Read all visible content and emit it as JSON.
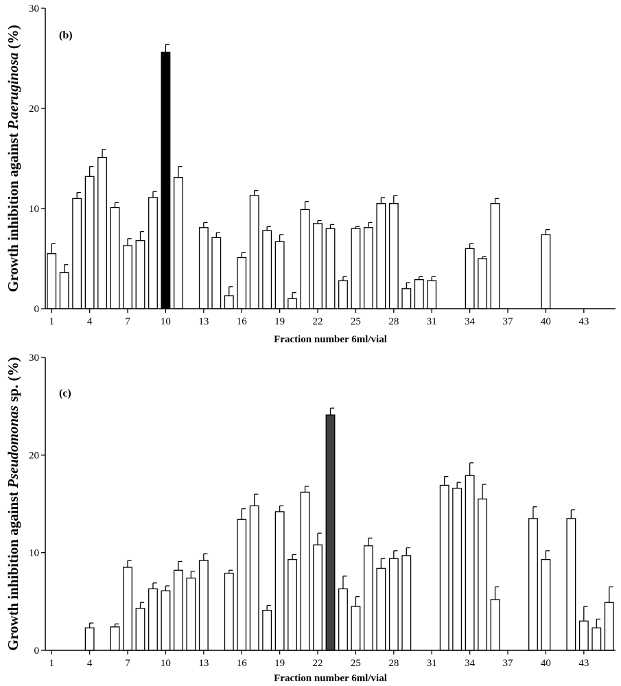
{
  "chart_data": [
    {
      "type": "bar",
      "panel_label": "(b)",
      "ylabel_prefix": "Growth inhibition against ",
      "ylabel_italic": "P.aeruginosa",
      "ylabel_suffix": " (%)",
      "xlabel": "Fraction number 6ml/vial",
      "ylim": [
        0,
        30
      ],
      "yticks": [
        0,
        10,
        20,
        30
      ],
      "xlim": [
        0.5,
        45.5
      ],
      "xticks": [
        1,
        4,
        7,
        10,
        13,
        16,
        19,
        22,
        25,
        28,
        31,
        34,
        37,
        40,
        43
      ],
      "highlight_color": "#000000",
      "bars": [
        {
          "x": 1,
          "value": 5.5,
          "error": 1.0
        },
        {
          "x": 2,
          "value": 3.6,
          "error": 0.8
        },
        {
          "x": 3,
          "value": 11.0,
          "error": 0.6
        },
        {
          "x": 4,
          "value": 13.2,
          "error": 1.0
        },
        {
          "x": 5,
          "value": 15.1,
          "error": 0.8
        },
        {
          "x": 6,
          "value": 10.1,
          "error": 0.5
        },
        {
          "x": 7,
          "value": 6.3,
          "error": 0.7
        },
        {
          "x": 8,
          "value": 6.8,
          "error": 0.9
        },
        {
          "x": 9,
          "value": 11.1,
          "error": 0.6
        },
        {
          "x": 10,
          "value": 25.6,
          "error": 0.8,
          "highlight": true
        },
        {
          "x": 11,
          "value": 13.1,
          "error": 1.1
        },
        {
          "x": 13,
          "value": 8.1,
          "error": 0.5
        },
        {
          "x": 14,
          "value": 7.1,
          "error": 0.5
        },
        {
          "x": 15,
          "value": 1.3,
          "error": 0.9
        },
        {
          "x": 16,
          "value": 5.1,
          "error": 0.5
        },
        {
          "x": 17,
          "value": 11.3,
          "error": 0.5
        },
        {
          "x": 18,
          "value": 7.8,
          "error": 0.4
        },
        {
          "x": 19,
          "value": 6.7,
          "error": 0.7
        },
        {
          "x": 20,
          "value": 1.0,
          "error": 0.6
        },
        {
          "x": 21,
          "value": 9.9,
          "error": 0.8
        },
        {
          "x": 22,
          "value": 8.5,
          "error": 0.3
        },
        {
          "x": 23,
          "value": 8.0,
          "error": 0.4
        },
        {
          "x": 24,
          "value": 2.8,
          "error": 0.4
        },
        {
          "x": 25,
          "value": 8.0,
          "error": 0.2
        },
        {
          "x": 26,
          "value": 8.1,
          "error": 0.5
        },
        {
          "x": 27,
          "value": 10.5,
          "error": 0.6
        },
        {
          "x": 28,
          "value": 10.5,
          "error": 0.8
        },
        {
          "x": 29,
          "value": 2.0,
          "error": 0.6
        },
        {
          "x": 30,
          "value": 2.9,
          "error": 0.3
        },
        {
          "x": 31,
          "value": 2.8,
          "error": 0.4
        },
        {
          "x": 34,
          "value": 6.0,
          "error": 0.5
        },
        {
          "x": 35,
          "value": 5.0,
          "error": 0.2
        },
        {
          "x": 36,
          "value": 10.5,
          "error": 0.5
        },
        {
          "x": 40,
          "value": 7.4,
          "error": 0.5
        }
      ]
    },
    {
      "type": "bar",
      "panel_label": "(c)",
      "ylabel_prefix": "Growth inhibition  against ",
      "ylabel_italic": "Pseudomonas",
      "ylabel_suffix": " sp. (%)",
      "xlabel": "Fraction number 6ml/vial",
      "ylim": [
        0,
        30
      ],
      "yticks": [
        0,
        10,
        20,
        30
      ],
      "xlim": [
        0.5,
        45.5
      ],
      "xticks": [
        1,
        4,
        7,
        10,
        13,
        16,
        19,
        22,
        25,
        28,
        31,
        34,
        37,
        40,
        43
      ],
      "highlight_color": "#404040",
      "bars": [
        {
          "x": 4,
          "value": 2.3,
          "error": 0.5
        },
        {
          "x": 6,
          "value": 2.4,
          "error": 0.3
        },
        {
          "x": 7,
          "value": 8.5,
          "error": 0.7
        },
        {
          "x": 8,
          "value": 4.3,
          "error": 0.6
        },
        {
          "x": 9,
          "value": 6.3,
          "error": 0.6
        },
        {
          "x": 10,
          "value": 6.1,
          "error": 0.5
        },
        {
          "x": 11,
          "value": 8.2,
          "error": 0.9
        },
        {
          "x": 12,
          "value": 7.4,
          "error": 0.7
        },
        {
          "x": 13,
          "value": 9.2,
          "error": 0.7
        },
        {
          "x": 15,
          "value": 7.9,
          "error": 0.3
        },
        {
          "x": 16,
          "value": 13.4,
          "error": 1.1
        },
        {
          "x": 17,
          "value": 14.8,
          "error": 1.2
        },
        {
          "x": 18,
          "value": 4.1,
          "error": 0.5
        },
        {
          "x": 19,
          "value": 14.2,
          "error": 0.6
        },
        {
          "x": 20,
          "value": 9.3,
          "error": 0.5
        },
        {
          "x": 21,
          "value": 16.2,
          "error": 0.6
        },
        {
          "x": 22,
          "value": 10.8,
          "error": 1.2
        },
        {
          "x": 23,
          "value": 24.1,
          "error": 0.7,
          "highlight": true
        },
        {
          "x": 24,
          "value": 6.3,
          "error": 1.3
        },
        {
          "x": 25,
          "value": 4.5,
          "error": 1.0
        },
        {
          "x": 26,
          "value": 10.7,
          "error": 0.8
        },
        {
          "x": 27,
          "value": 8.4,
          "error": 1.0
        },
        {
          "x": 28,
          "value": 9.4,
          "error": 0.8
        },
        {
          "x": 29,
          "value": 9.7,
          "error": 0.8
        },
        {
          "x": 32,
          "value": 16.9,
          "error": 0.9
        },
        {
          "x": 33,
          "value": 16.6,
          "error": 0.6
        },
        {
          "x": 34,
          "value": 17.9,
          "error": 1.3
        },
        {
          "x": 35,
          "value": 15.5,
          "error": 1.5
        },
        {
          "x": 36,
          "value": 5.2,
          "error": 1.3
        },
        {
          "x": 39,
          "value": 13.5,
          "error": 1.2
        },
        {
          "x": 40,
          "value": 9.3,
          "error": 0.9
        },
        {
          "x": 42,
          "value": 13.5,
          "error": 0.9
        },
        {
          "x": 43,
          "value": 3.0,
          "error": 1.5
        },
        {
          "x": 44,
          "value": 2.3,
          "error": 0.9
        },
        {
          "x": 45,
          "value": 4.9,
          "error": 1.6
        }
      ]
    }
  ]
}
